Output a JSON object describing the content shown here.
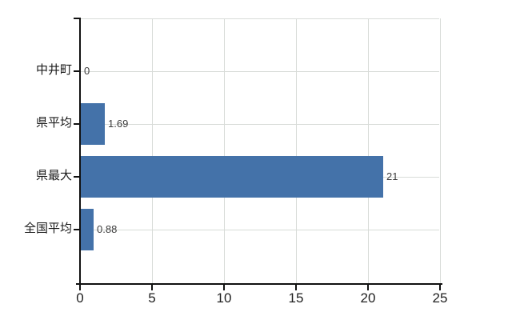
{
  "chart_data": {
    "type": "bar",
    "orientation": "horizontal",
    "title": "",
    "xlabel": "",
    "ylabel": "",
    "categories": [
      "中井町",
      "県平均",
      "県最大",
      "全国平均"
    ],
    "values": [
      0,
      1.69,
      21,
      0.88
    ],
    "value_labels": [
      "0",
      "1.69",
      "21",
      "0.88"
    ],
    "xlim": [
      0,
      25
    ],
    "x_ticks": [
      0,
      5,
      10,
      15,
      20,
      25
    ],
    "x_tick_labels": [
      "0",
      "5",
      "10",
      "15",
      "20",
      "25"
    ],
    "grid": true,
    "legend": "none",
    "colors": {
      "bar": "#4472A9",
      "gridline": "#D8DBD8",
      "axis": "#111111",
      "category_text": "#1a1a1a",
      "tick_text": "#1f1f1f",
      "value_text": "#3d3d3d",
      "background": "#ffffff"
    }
  }
}
